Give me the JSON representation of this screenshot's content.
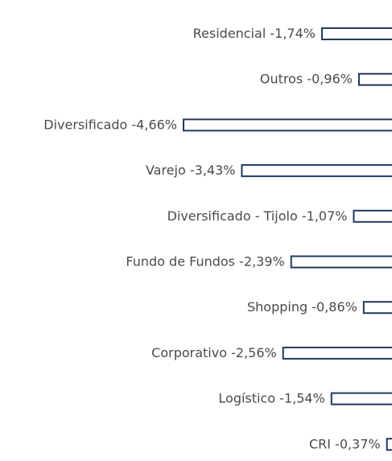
{
  "chart_data": {
    "type": "bar",
    "orientation": "horizontal",
    "categories": [
      "Residencial",
      "Outros",
      "Diversificado",
      "Varejo",
      "Diversificado - Tijolo",
      "Fundo de Fundos",
      "Shopping",
      "Corporativo",
      "Logístico",
      "CRI"
    ],
    "values": [
      -1.74,
      -0.96,
      -4.66,
      -3.43,
      -1.07,
      -2.39,
      -0.86,
      -2.56,
      -1.54,
      -0.37
    ],
    "value_labels": [
      "-1,74%",
      "-0,96%",
      "-4,66%",
      "-3,43%",
      "-1,07%",
      "-2,39%",
      "-0,86%",
      "-2,56%",
      "-1,54%",
      "-0,37%"
    ],
    "color": "#1f3a5c",
    "xlim": [
      -5,
      0
    ]
  }
}
